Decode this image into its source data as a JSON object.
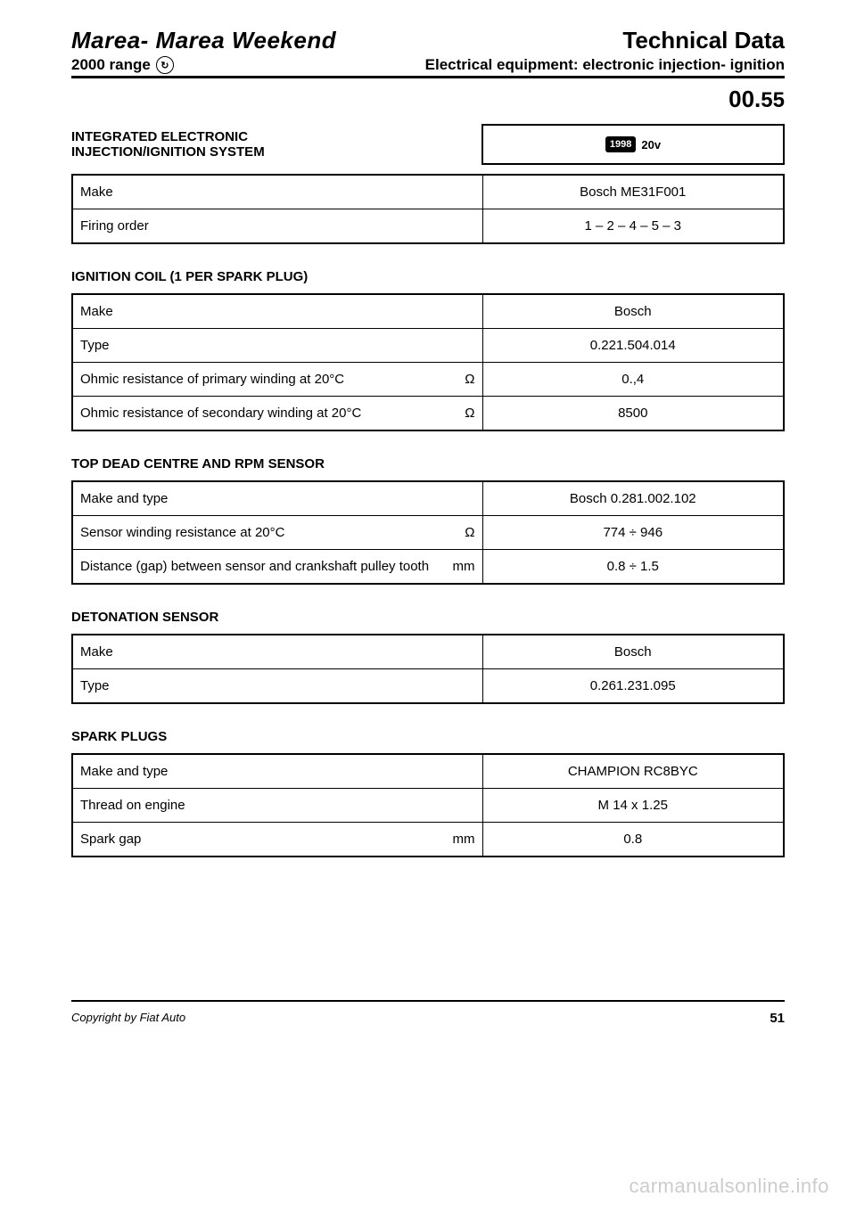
{
  "header": {
    "title_left": "Marea- Marea Weekend",
    "title_right": "Technical Data",
    "range": "2000 range",
    "subtitle": "Electrical equipment: electronic injection- ignition",
    "page_code_prefix": "00.",
    "page_code_suffix": "55"
  },
  "system": {
    "heading_line1": "INTEGRATED ELECTRONIC",
    "heading_line2": "INJECTION/IGNITION SYSTEM",
    "badge_year": "1998",
    "badge_variant": "20v",
    "rows": [
      {
        "label": "Make",
        "unit": "",
        "value": "Bosch ME31F001"
      },
      {
        "label": "Firing order",
        "unit": "",
        "value": "1 – 2 – 4 – 5 – 3"
      }
    ]
  },
  "ignition_coil": {
    "heading": "IGNITION COIL (1 PER SPARK PLUG)",
    "rows": [
      {
        "label": "Make",
        "unit": "",
        "value": "Bosch"
      },
      {
        "label": "Type",
        "unit": "",
        "value": "0.221.504.014"
      },
      {
        "label": "Ohmic resistance of primary winding at 20°C",
        "unit": "Ω",
        "value": "0.,4"
      },
      {
        "label": "Ohmic resistance of secondary winding at 20°C",
        "unit": "Ω",
        "value": "8500"
      }
    ]
  },
  "tdc_sensor": {
    "heading": "TOP DEAD CENTRE AND RPM SENSOR",
    "rows": [
      {
        "label": "Make and type",
        "unit": "",
        "value": "Bosch 0.281.002.102"
      },
      {
        "label": "Sensor winding resistance at 20°C",
        "unit": "Ω",
        "value": "774 ÷ 946"
      },
      {
        "label": "Distance (gap) between sensor and crankshaft pulley tooth",
        "unit": "mm",
        "value": "0.8 ÷ 1.5"
      }
    ]
  },
  "detonation": {
    "heading": "DETONATION SENSOR",
    "rows": [
      {
        "label": "Make",
        "unit": "",
        "value": "Bosch"
      },
      {
        "label": "Type",
        "unit": "",
        "value": "0.261.231.095"
      }
    ]
  },
  "spark_plugs": {
    "heading": "SPARK PLUGS",
    "rows": [
      {
        "label": "Make and type",
        "unit": "",
        "value": "CHAMPION RC8BYC"
      },
      {
        "label": "Thread on engine",
        "unit": "",
        "value": "M 14 x 1.25"
      },
      {
        "label": "Spark gap",
        "unit": "mm",
        "value": "0.8"
      }
    ]
  },
  "footer": {
    "copyright": "Copyright by Fiat Auto",
    "page_number": "51"
  },
  "watermark": "carmanualsonline.info"
}
